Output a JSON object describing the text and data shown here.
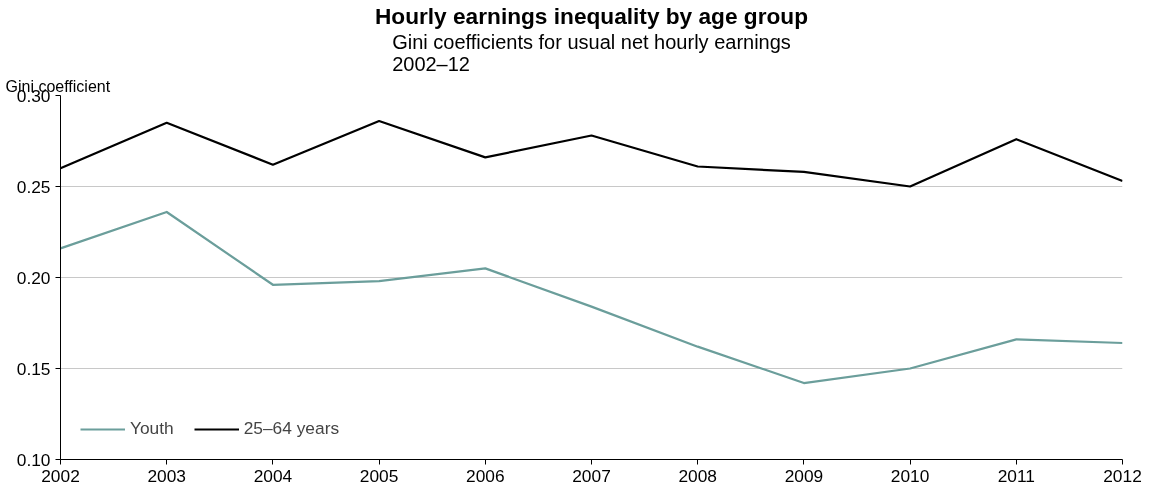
{
  "chart_data": {
    "type": "line",
    "title": "Hourly earnings inequality by age group",
    "subtitle": "Gini coefficients for usual net hourly earnings\n2002–12",
    "ylabel": "Gini coefficient",
    "x": [
      2002,
      2003,
      2004,
      2005,
      2006,
      2007,
      2008,
      2009,
      2010,
      2011,
      2012
    ],
    "xlim": [
      2002,
      2012
    ],
    "xticks": [
      2002,
      2003,
      2004,
      2005,
      2006,
      2007,
      2008,
      2009,
      2010,
      2011,
      2012
    ],
    "ylim": [
      0.1,
      0.3
    ],
    "yticks": [
      {
        "value": 0.1,
        "label": "0.10"
      },
      {
        "value": 0.15,
        "label": "0.15"
      },
      {
        "value": 0.2,
        "label": "0.20"
      },
      {
        "value": 0.25,
        "label": "0.25"
      },
      {
        "value": 0.3,
        "label": "0.30"
      }
    ],
    "grid": "y",
    "legend": "bottom left",
    "marker": "none",
    "line_style": "solid",
    "series": [
      {
        "name": "Youth",
        "color": "#6b9e9b",
        "values": [
          0.216,
          0.236,
          0.196,
          0.198,
          0.205,
          0.184,
          0.162,
          0.142,
          0.15,
          0.166,
          0.164
        ]
      },
      {
        "name": "25–64 years",
        "color": "#000000",
        "values": [
          0.26,
          0.285,
          0.262,
          0.286,
          0.266,
          0.278,
          0.261,
          0.258,
          0.25,
          0.276,
          0.253
        ]
      }
    ]
  }
}
